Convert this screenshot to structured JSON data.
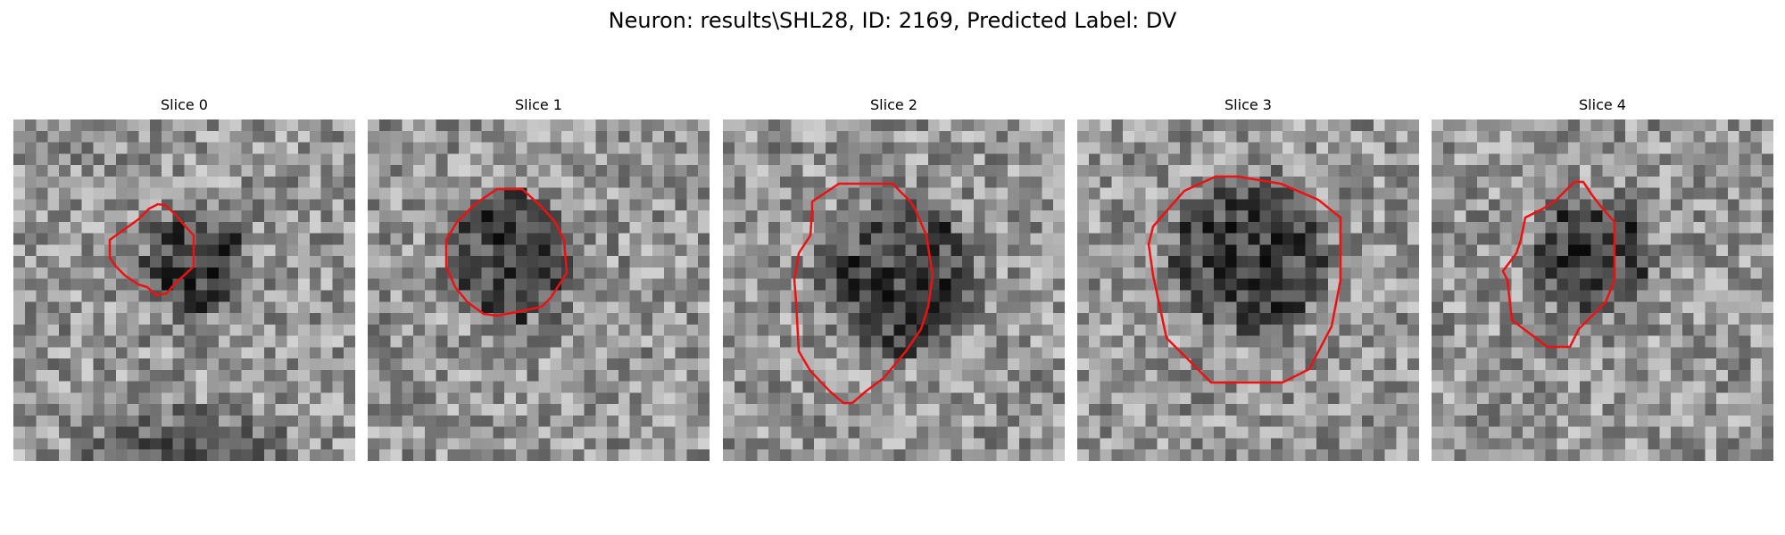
{
  "figure": {
    "title": "Neuron: results\\SHL28, ID: 2169, Predicted Label: DV"
  },
  "contour_color": "#ee1111",
  "slices": [
    {
      "title": "Slice 0"
    },
    {
      "title": "Slice 1"
    },
    {
      "title": "Slice 2"
    },
    {
      "title": "Slice 3"
    },
    {
      "title": "Slice 4"
    }
  ]
}
